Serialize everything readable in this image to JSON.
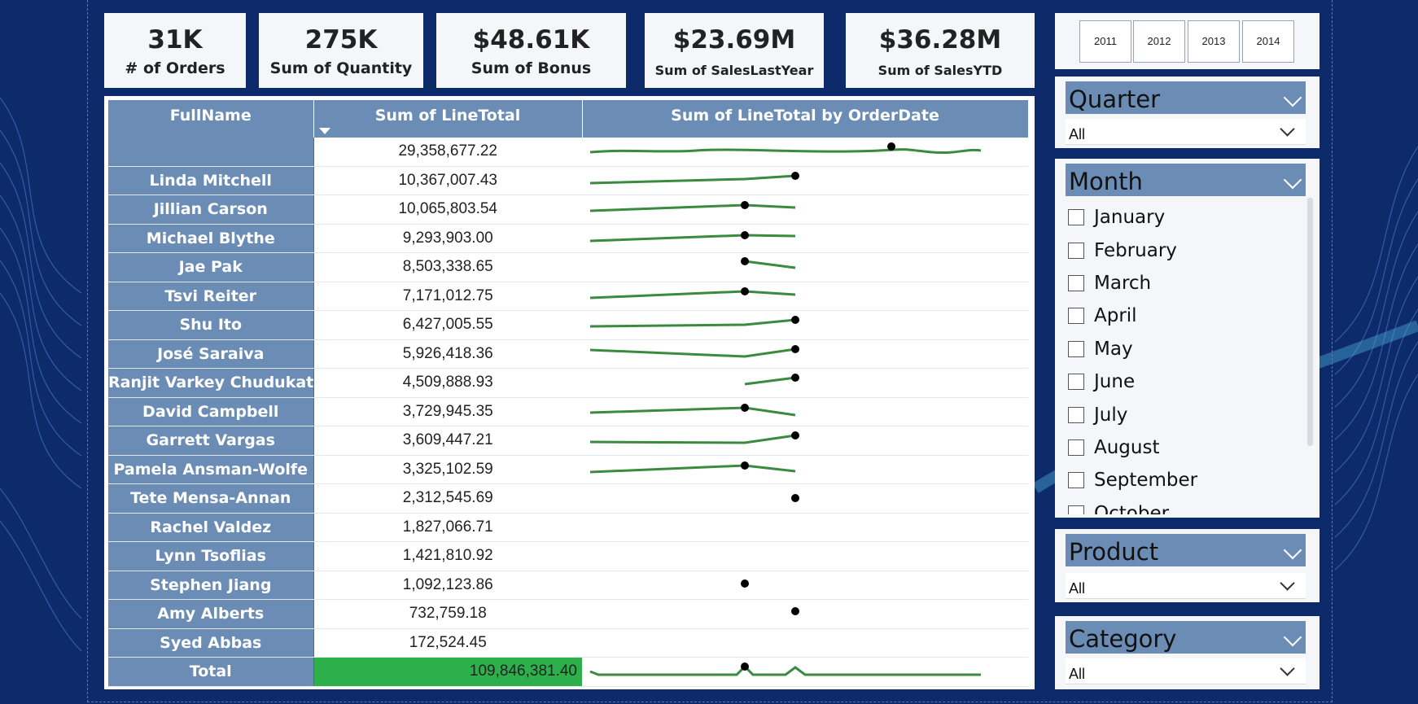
{
  "kpis": [
    {
      "value": "31K",
      "label": "# of Orders"
    },
    {
      "value": "275K",
      "label": "Sum of Quantity"
    },
    {
      "value": "$48.61K",
      "label": "Sum of Bonus"
    },
    {
      "value": "$23.69M",
      "label": "Sum of SalesLastYear"
    },
    {
      "value": "$36.28M",
      "label": "Sum of SalesYTD"
    }
  ],
  "table": {
    "headers": {
      "name": "FullName",
      "value": "Sum of LineTotal",
      "spark": "Sum of LineTotal by OrderDate"
    },
    "rows": [
      {
        "name": "",
        "value": "29,358,677.22"
      },
      {
        "name": "Linda Mitchell",
        "value": "10,367,007.43"
      },
      {
        "name": "Jillian Carson",
        "value": "10,065,803.54"
      },
      {
        "name": "Michael Blythe",
        "value": "9,293,903.00"
      },
      {
        "name": "Jae Pak",
        "value": "8,503,338.65"
      },
      {
        "name": "Tsvi Reiter",
        "value": "7,171,012.75"
      },
      {
        "name": "Shu Ito",
        "value": "6,427,005.55"
      },
      {
        "name": "José Saraiva",
        "value": "5,926,418.36"
      },
      {
        "name": "Ranjit Varkey Chudukatil",
        "value": "4,509,888.93"
      },
      {
        "name": "David Campbell",
        "value": "3,729,945.35"
      },
      {
        "name": "Garrett Vargas",
        "value": "3,609,447.21"
      },
      {
        "name": "Pamela Ansman-Wolfe",
        "value": "3,325,102.59"
      },
      {
        "name": "Tete Mensa-Annan",
        "value": "2,312,545.69"
      },
      {
        "name": "Rachel Valdez",
        "value": "1,827,066.71"
      },
      {
        "name": "Lynn Tsoflias",
        "value": "1,421,810.92"
      },
      {
        "name": "Stephen Jiang",
        "value": "1,092,123.86"
      },
      {
        "name": "Amy Alberts",
        "value": "732,759.18"
      },
      {
        "name": "Syed Abbas",
        "value": "172,524.45"
      }
    ],
    "total": {
      "label": "Total",
      "value": "109,846,381.40"
    }
  },
  "years": [
    "2011",
    "2012",
    "2013",
    "2014"
  ],
  "slicers": {
    "quarter": {
      "title": "Quarter",
      "value": "All"
    },
    "month": {
      "title": "Month",
      "items": [
        "January",
        "February",
        "March",
        "April",
        "May",
        "June",
        "July",
        "August",
        "September",
        "October"
      ]
    },
    "product": {
      "title": "Product",
      "value": "All"
    },
    "category": {
      "title": "Category",
      "value": "All"
    }
  },
  "colors": {
    "background": "#0d2a6b",
    "header": "#6b8db5",
    "sparkline": "#3a8a3f",
    "total_fill": "#2db04b"
  }
}
